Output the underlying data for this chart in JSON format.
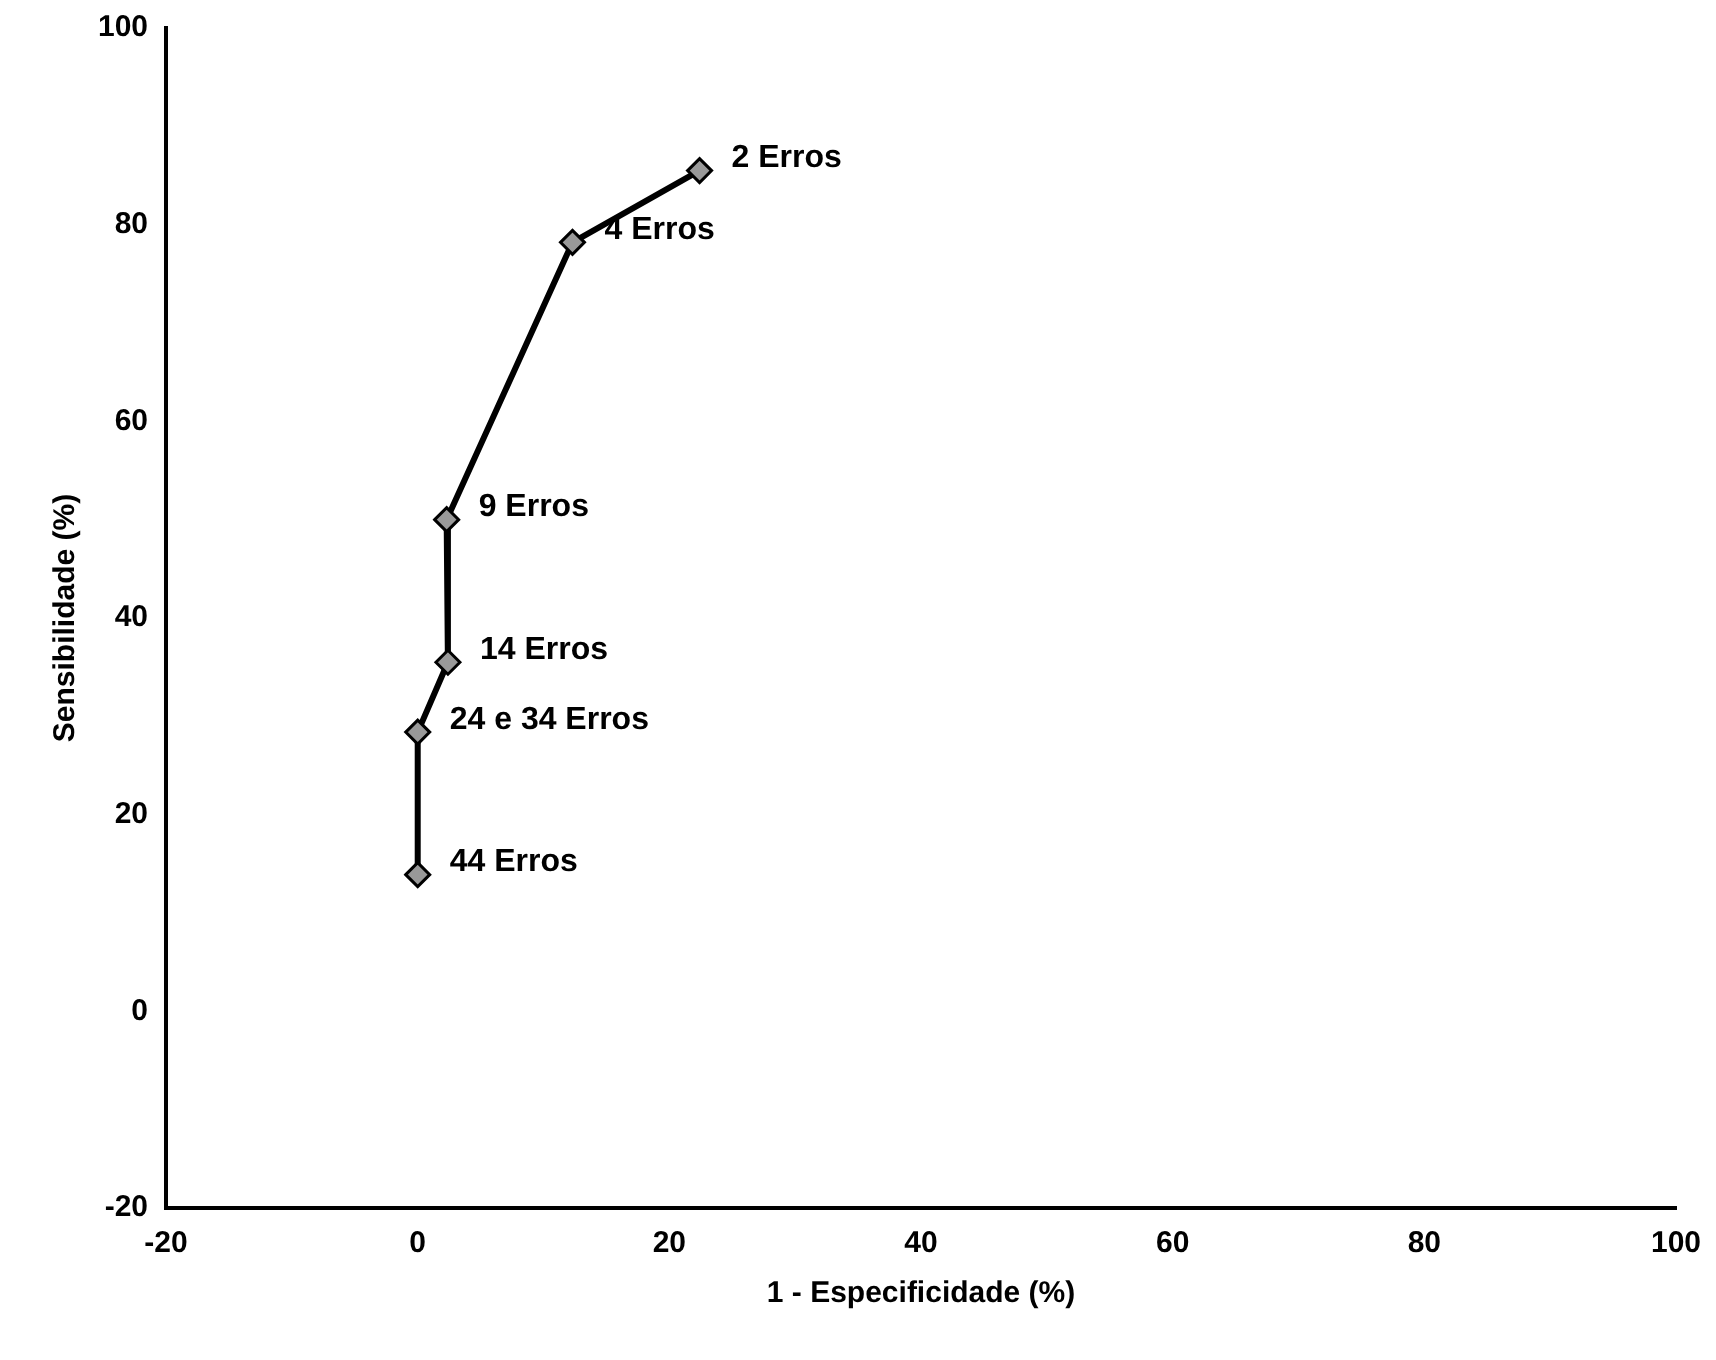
{
  "chart_data": {
    "type": "line",
    "xlabel": "1 - Especificidade (%)",
    "ylabel": "Sensibilidade (%)",
    "x": [
      22.4,
      12.3,
      2.3,
      2.4,
      0,
      0
    ],
    "series": [
      {
        "color": "#000000",
        "values": [
          85.5,
          78.2,
          50,
          35.5,
          28.4,
          13.9
        ]
      }
    ],
    "xlim": [
      -20,
      100
    ],
    "xticks": [
      -20,
      0,
      20,
      40,
      60,
      80,
      100
    ],
    "ylim": [
      -20,
      100
    ],
    "yticks": [
      -20,
      0,
      20,
      40,
      60,
      80,
      100
    ],
    "grid": false,
    "legend": false,
    "marker": "diamond",
    "line_style": "solid",
    "annotations": [
      {
        "text": "2 Erros",
        "x": 22.4,
        "y": 85.5
      },
      {
        "text": "4 Erros",
        "x": 12.3,
        "y": 78.2
      },
      {
        "text": "9 Erros",
        "x": 2.3,
        "y": 50
      },
      {
        "text": "14 Erros",
        "x": 2.4,
        "y": 35.5
      },
      {
        "text": "24 e 34 Erros",
        "x": 0,
        "y": 28.4
      },
      {
        "text": "44 Erros",
        "x": 0,
        "y": 13.9
      }
    ]
  }
}
